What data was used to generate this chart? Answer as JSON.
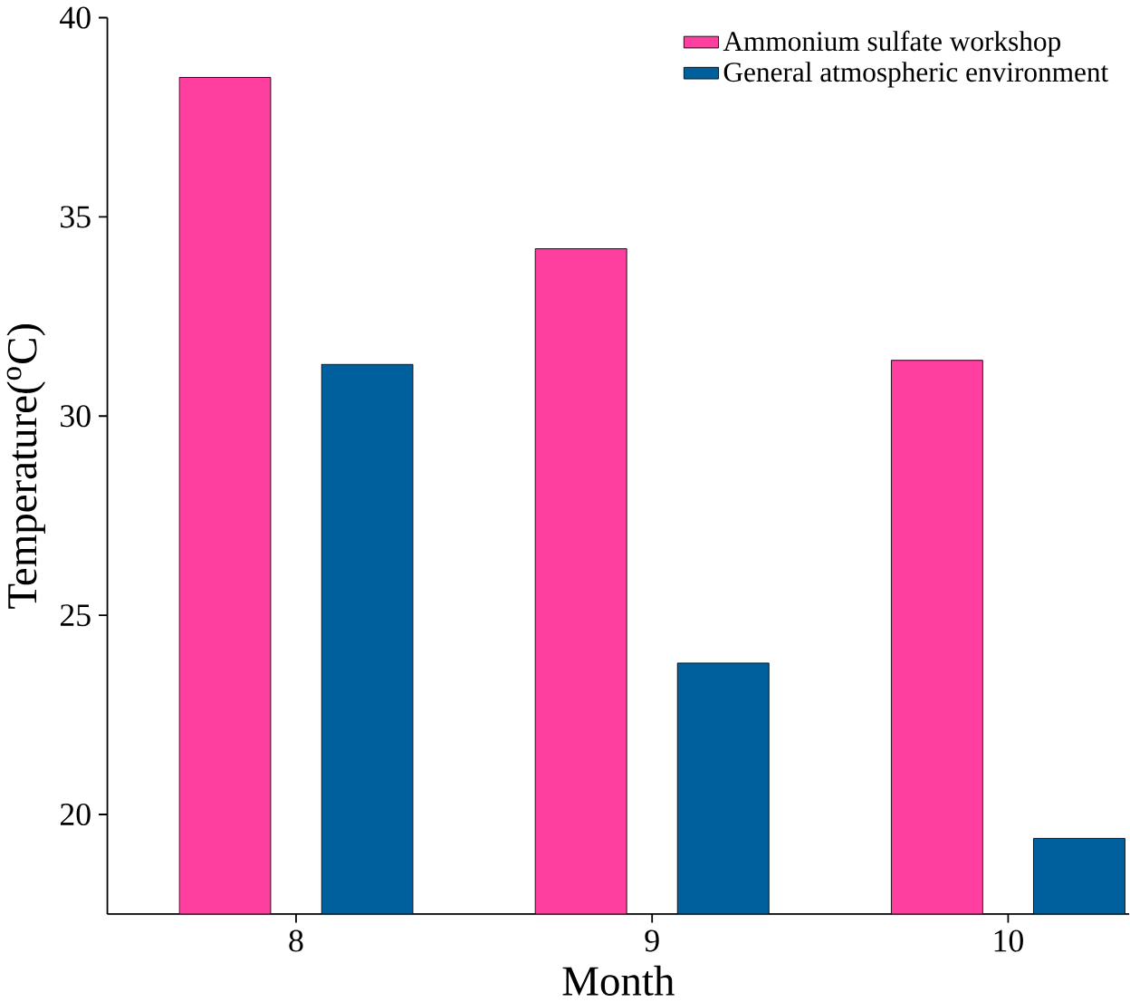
{
  "chart_data": {
    "type": "bar",
    "xlabel": "Month",
    "ylabel": "Temperature($^{o}$C)",
    "categories": [
      "8",
      "9",
      "10"
    ],
    "series": [
      {
        "name": "Ammonium sulfate workshop",
        "color": "#ff3fa0",
        "values": [
          38.5,
          34.2,
          31.4
        ]
      },
      {
        "name": "General atmospheric environment",
        "color": "#00609e",
        "values": [
          31.3,
          23.8,
          19.4
        ]
      }
    ],
    "ylim": [
      17.5,
      40
    ],
    "yticks": [
      20,
      25,
      30,
      35,
      40
    ],
    "grid": false,
    "legend": "top right"
  }
}
